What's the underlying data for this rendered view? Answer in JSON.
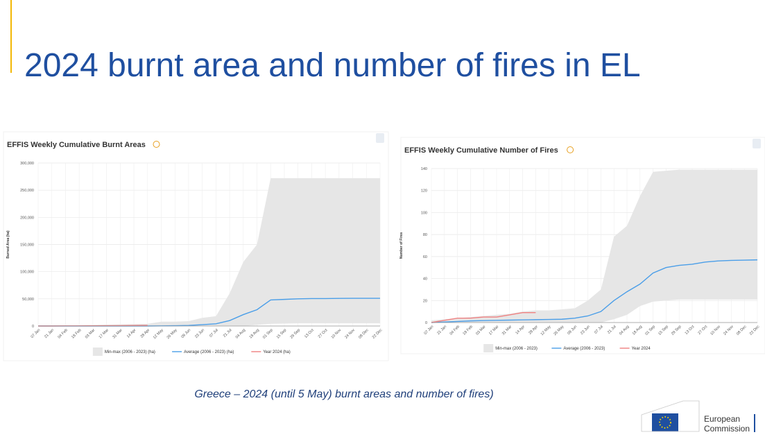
{
  "title": "2024 burnt area and number of fires in EL",
  "caption": "Greece – 2024 (until 5 May) burnt areas and number of fires)",
  "logo": [
    "European",
    "Commission"
  ],
  "chart_data": [
    {
      "type": "line",
      "title": "EFFIS Weekly Cumulative Burnt Areas",
      "y_label": "Burned Area (ha)",
      "categories": [
        "07 Jan",
        "21 Jan",
        "04 Feb",
        "18 Feb",
        "03 Mar",
        "17 Mar",
        "31 Mar",
        "14 Apr",
        "28 Apr",
        "12 May",
        "26 May",
        "09 Jun",
        "23 Jun",
        "07 Jul",
        "21 Jul",
        "04 Aug",
        "18 Aug",
        "01 Sep",
        "15 Sep",
        "29 Sep",
        "13 Oct",
        "27 Oct",
        "10 Nov",
        "24 Nov",
        "08 Dec",
        "22 Dec"
      ],
      "ylim": [
        0,
        300000
      ],
      "yticks": [
        0,
        {
          "value": 50000,
          "label": "50,000"
        },
        {
          "value": 100000,
          "label": "100,000"
        },
        {
          "value": 150000,
          "label": "150,000"
        },
        {
          "value": 200000,
          "label": "200,000"
        },
        {
          "value": 250000,
          "label": "250,000"
        },
        {
          "value": 300000,
          "label": "300,000"
        }
      ],
      "grid": true,
      "series": [
        {
          "name": "Min-max (2006 - 2023) (ha)",
          "color": "#e6e6e6",
          "values": [
            0,
            500,
            1000,
            1500,
            2000,
            2500,
            3000,
            3500,
            4000,
            8000,
            8000,
            9000,
            15000,
            18000,
            60000,
            118000,
            150000,
            272000,
            272000,
            272000,
            272000,
            272000,
            272000,
            272000,
            272000,
            272000
          ],
          "lower": [
            0,
            0,
            0,
            0,
            0,
            0,
            0,
            0,
            0,
            0,
            0,
            0,
            0,
            0,
            0,
            0,
            2000,
            4000,
            4500,
            5000,
            5000,
            5000,
            5000,
            5000,
            5000,
            5000
          ]
        },
        {
          "name": "Average (2006 - 2023) (ha)",
          "color": "#4a9ee8",
          "values": [
            0,
            0,
            0,
            0,
            0,
            0,
            0,
            0,
            0,
            200,
            500,
            1000,
            2500,
            4000,
            10000,
            21000,
            30000,
            48000,
            49000,
            50000,
            50500,
            50500,
            50800,
            51000,
            51000,
            51000
          ]
        },
        {
          "name": "Year 2024 (ha)",
          "color": "#f08080",
          "values": [
            0,
            0,
            200,
            300,
            400,
            500,
            700,
            1000,
            1200,
            null,
            null,
            null,
            null,
            null,
            null,
            null,
            null,
            null,
            null,
            null,
            null,
            null,
            null,
            null,
            null,
            null
          ]
        }
      ]
    },
    {
      "type": "line",
      "title": "EFFIS Weekly Cumulative Number of Fires",
      "y_label": "Number of Fires",
      "categories": [
        "07 Jan",
        "21 Jan",
        "04 Feb",
        "18 Feb",
        "03 Mar",
        "17 Mar",
        "31 Mar",
        "14 Apr",
        "28 Apr",
        "12 May",
        "26 May",
        "09 Jun",
        "23 Jun",
        "07 Jul",
        "21 Jul",
        "04 Aug",
        "18 Aug",
        "01 Sep",
        "15 Sep",
        "29 Sep",
        "13 Oct",
        "27 Oct",
        "10 Nov",
        "24 Nov",
        "08 Dec",
        "22 Dec"
      ],
      "ylim": [
        0,
        140
      ],
      "yticks": [
        0,
        20,
        40,
        60,
        80,
        100,
        120,
        140
      ],
      "grid": true,
      "series": [
        {
          "name": "Min-max (2006 - 2023)",
          "color": "#e6e6e6",
          "values": [
            2,
            3,
            4,
            5,
            6,
            7,
            8,
            10,
            11,
            11,
            12,
            13,
            20,
            30,
            78,
            88,
            115,
            137,
            138,
            139,
            139,
            139,
            139,
            139,
            139,
            139
          ],
          "lower": [
            0,
            0,
            0,
            0,
            0,
            0,
            0,
            0,
            0,
            0,
            0,
            0,
            0,
            0,
            3,
            7,
            15,
            19,
            20,
            21,
            21,
            21,
            21,
            21,
            21,
            21
          ]
        },
        {
          "name": "Average (2006 - 2023)",
          "color": "#4a9ee8",
          "values": [
            0,
            0.5,
            1,
            1.5,
            1.8,
            2,
            2.2,
            2.4,
            2.6,
            2.8,
            3,
            4,
            6,
            10,
            20,
            28,
            35,
            45,
            50,
            52,
            53,
            55,
            56,
            56.5,
            56.7,
            57
          ]
        },
        {
          "name": "Year 2024",
          "color": "#f08080",
          "values": [
            0,
            2,
            4,
            4,
            5,
            5,
            7,
            9,
            9,
            null,
            null,
            null,
            null,
            null,
            null,
            null,
            null,
            null,
            null,
            null,
            null,
            null,
            null,
            null,
            null,
            null
          ]
        }
      ]
    }
  ]
}
